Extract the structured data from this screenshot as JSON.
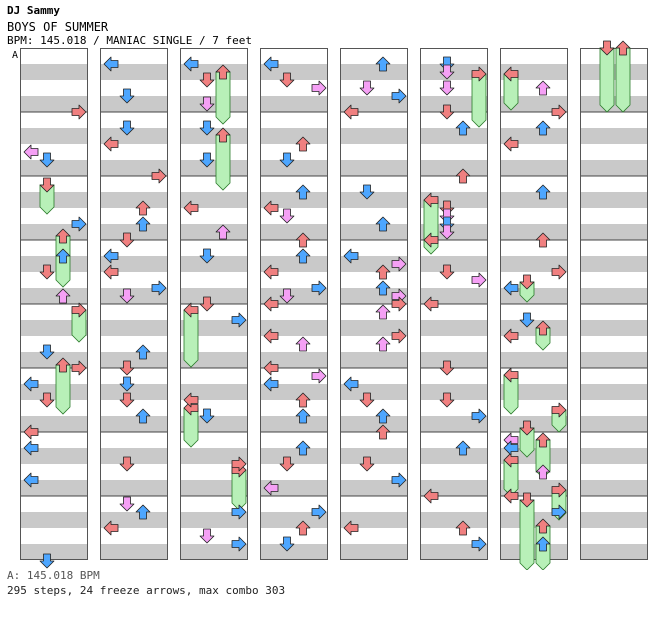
{
  "header": {
    "artist": "DJ Sammy",
    "title": "BOYS OF SUMMER",
    "info": "BPM: 145.018 / MANIAC SINGLE / 7 feet"
  },
  "chart": {
    "section_marker": "A",
    "column_count": 8,
    "measures_per_column": 8,
    "lanes": [
      "left",
      "down",
      "up",
      "right"
    ],
    "colors": {
      "stripe": "#c9c9c9",
      "border": "#555555",
      "quarter_note": "#f08080",
      "eighth_note": "#4da6ff",
      "sixteenth_note": "#f5a0f5",
      "freeze": "#b8f0b8"
    }
  },
  "footer": {
    "bpm_line": "A: 145.018 BPM",
    "stats_line": "295 steps, 24 freeze arrows, max combo 303"
  }
}
